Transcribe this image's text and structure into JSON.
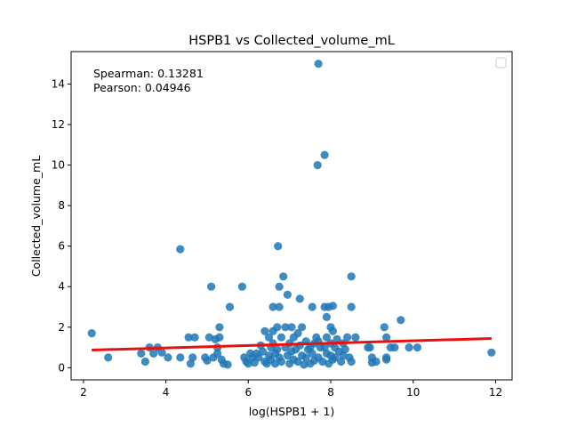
{
  "chart_data": {
    "type": "scatter",
    "title": "HSPB1 vs Collected_volume_mL",
    "xlabel": "log(HSPB1 + 1)",
    "ylabel": "Collected_volume_mL",
    "xlim": [
      1.7,
      12.4
    ],
    "ylim": [
      -0.6,
      15.6
    ],
    "xticks": [
      2,
      4,
      6,
      8,
      10,
      12
    ],
    "yticks": [
      0,
      2,
      4,
      6,
      8,
      10,
      12,
      14
    ],
    "annotations": [
      "Spearman: 0.13281",
      "Pearson: 0.04946"
    ],
    "legend": {
      "location": "top-right",
      "entries": []
    },
    "regression": {
      "x": [
        2.2,
        11.9
      ],
      "y": [
        0.87,
        1.44
      ],
      "color": "#e8110f"
    },
    "marker_color": "#1f77b4",
    "points": [
      [
        2.2,
        1.7
      ],
      [
        2.6,
        0.5
      ],
      [
        3.4,
        0.7
      ],
      [
        3.5,
        0.3
      ],
      [
        3.6,
        1.0
      ],
      [
        3.7,
        0.7
      ],
      [
        3.8,
        1.0
      ],
      [
        3.9,
        0.75
      ],
      [
        4.05,
        0.5
      ],
      [
        4.35,
        5.85
      ],
      [
        4.35,
        0.5
      ],
      [
        4.55,
        1.5
      ],
      [
        4.6,
        0.2
      ],
      [
        4.65,
        0.5
      ],
      [
        4.7,
        1.5
      ],
      [
        4.95,
        0.5
      ],
      [
        5.0,
        0.35
      ],
      [
        5.05,
        1.5
      ],
      [
        5.1,
        4.0
      ],
      [
        5.15,
        0.5
      ],
      [
        5.2,
        1.4
      ],
      [
        5.25,
        1.0
      ],
      [
        5.25,
        0.7
      ],
      [
        5.3,
        2.0
      ],
      [
        5.3,
        1.5
      ],
      [
        5.35,
        0.4
      ],
      [
        5.4,
        0.2
      ],
      [
        5.5,
        0.15
      ],
      [
        5.55,
        3.0
      ],
      [
        5.85,
        4.0
      ],
      [
        5.9,
        0.5
      ],
      [
        5.95,
        0.3
      ],
      [
        6.0,
        0.2
      ],
      [
        6.05,
        0.7
      ],
      [
        6.1,
        0.5
      ],
      [
        6.15,
        0.25
      ],
      [
        6.2,
        0.7
      ],
      [
        6.25,
        0.5
      ],
      [
        6.3,
        1.1
      ],
      [
        6.35,
        0.8
      ],
      [
        6.4,
        1.8
      ],
      [
        6.4,
        0.3
      ],
      [
        6.45,
        0.2
      ],
      [
        6.5,
        1.5
      ],
      [
        6.5,
        0.6
      ],
      [
        6.55,
        1.0
      ],
      [
        6.55,
        0.4
      ],
      [
        6.6,
        3.0
      ],
      [
        6.6,
        1.8
      ],
      [
        6.6,
        1.2
      ],
      [
        6.65,
        0.7
      ],
      [
        6.65,
        0.2
      ],
      [
        6.7,
        2.0
      ],
      [
        6.7,
        0.9
      ],
      [
        6.72,
        6.0
      ],
      [
        6.75,
        4.0
      ],
      [
        6.75,
        3.0
      ],
      [
        6.75,
        0.5
      ],
      [
        6.8,
        1.5
      ],
      [
        6.8,
        0.3
      ],
      [
        6.85,
        4.5
      ],
      [
        6.9,
        2.0
      ],
      [
        6.9,
        1.0
      ],
      [
        6.95,
        3.6
      ],
      [
        6.95,
        0.6
      ],
      [
        7.0,
        1.2
      ],
      [
        7.0,
        0.2
      ],
      [
        7.05,
        2.0
      ],
      [
        7.05,
        0.8
      ],
      [
        7.1,
        1.5
      ],
      [
        7.1,
        0.4
      ],
      [
        7.15,
        0.9
      ],
      [
        7.2,
        1.7
      ],
      [
        7.2,
        0.3
      ],
      [
        7.25,
        3.4
      ],
      [
        7.25,
        1.1
      ],
      [
        7.3,
        2.0
      ],
      [
        7.3,
        0.6
      ],
      [
        7.35,
        0.15
      ],
      [
        7.4,
        1.3
      ],
      [
        7.4,
        0.5
      ],
      [
        7.45,
        0.9
      ],
      [
        7.5,
        1.0
      ],
      [
        7.5,
        0.2
      ],
      [
        7.55,
        3.0
      ],
      [
        7.55,
        0.7
      ],
      [
        7.6,
        1.2
      ],
      [
        7.6,
        0.35
      ],
      [
        7.65,
        1.5
      ],
      [
        7.68,
        10.0
      ],
      [
        7.7,
        15.0
      ],
      [
        7.7,
        1.3
      ],
      [
        7.7,
        0.5
      ],
      [
        7.75,
        1.0
      ],
      [
        7.8,
        0.3
      ],
      [
        7.85,
        10.5
      ],
      [
        7.85,
        3.0
      ],
      [
        7.85,
        1.0
      ],
      [
        7.9,
        2.5
      ],
      [
        7.9,
        1.5
      ],
      [
        7.9,
        0.7
      ],
      [
        7.95,
        3.0
      ],
      [
        7.95,
        0.2
      ],
      [
        8.0,
        2.0
      ],
      [
        8.0,
        1.2
      ],
      [
        8.0,
        0.6
      ],
      [
        8.05,
        3.05
      ],
      [
        8.05,
        1.8
      ],
      [
        8.05,
        0.4
      ],
      [
        8.1,
        1.0
      ],
      [
        8.1,
        0.5
      ],
      [
        8.15,
        1.4
      ],
      [
        8.2,
        0.8
      ],
      [
        8.25,
        0.3
      ],
      [
        8.3,
        1.2
      ],
      [
        8.3,
        0.6
      ],
      [
        8.35,
        0.9
      ],
      [
        8.4,
        1.5
      ],
      [
        8.45,
        0.5
      ],
      [
        8.5,
        4.5
      ],
      [
        8.5,
        3.0
      ],
      [
        8.5,
        0.3
      ],
      [
        8.6,
        1.5
      ],
      [
        8.9,
        1.0
      ],
      [
        8.95,
        1.0
      ],
      [
        9.0,
        0.5
      ],
      [
        9.0,
        0.25
      ],
      [
        9.1,
        0.3
      ],
      [
        9.3,
        2.0
      ],
      [
        9.35,
        1.5
      ],
      [
        9.35,
        0.5
      ],
      [
        9.35,
        0.4
      ],
      [
        9.45,
        1.0
      ],
      [
        9.55,
        1.0
      ],
      [
        9.7,
        2.35
      ],
      [
        9.9,
        1.0
      ],
      [
        10.1,
        1.0
      ],
      [
        11.9,
        0.75
      ]
    ]
  }
}
